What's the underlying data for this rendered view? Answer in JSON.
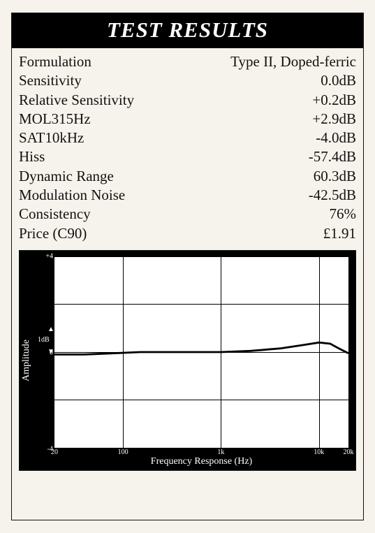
{
  "title": "TEST RESULTS",
  "rows": [
    {
      "label": "Formulation",
      "value": "Type II, Doped-ferric"
    },
    {
      "label": "Sensitivity",
      "value": "0.0dB"
    },
    {
      "label": "Relative Sensitivity",
      "value": "+0.2dB"
    },
    {
      "label": "MOL315Hz",
      "value": "+2.9dB"
    },
    {
      "label": "SAT10kHz",
      "value": "-4.0dB"
    },
    {
      "label": "Hiss",
      "value": "-57.4dB"
    },
    {
      "label": "Dynamic Range",
      "value": "60.3dB"
    },
    {
      "label": "Modulation Noise",
      "value": "-42.5dB"
    },
    {
      "label": "Consistency",
      "value": "76%"
    },
    {
      "label": "Price (C90)",
      "value": "£1.91"
    }
  ],
  "chart": {
    "type": "line",
    "xlabel": "Frequency Response (Hz)",
    "ylabel": "Amplitude",
    "x_scale": "log",
    "xlim": [
      20,
      20000
    ],
    "ylim": [
      -4,
      4
    ],
    "ytick_step": 2,
    "yticks": [
      -4,
      -2,
      0,
      2,
      4
    ],
    "ytick_labels": [
      "-4",
      "",
      "0",
      "",
      "+4"
    ],
    "xticks": [
      20,
      100,
      1000,
      10000,
      20000
    ],
    "xtick_labels": [
      "20",
      "100",
      "1k",
      "10k",
      "20k"
    ],
    "x_gridlines": [
      100,
      1000,
      10000
    ],
    "y_gridlines": [
      -4,
      -2,
      0,
      2,
      4
    ],
    "db_marker_label": "1dB",
    "db_marker_span": 1,
    "line_color": "#000000",
    "line_width": 1.2,
    "background_color": "#ffffff",
    "margin_color": "#000000",
    "grid_color": "#000000",
    "tick_font_color": "#ffffff",
    "label_font_color": "#ffffff",
    "label_fontsize": 14,
    "tick_fontsize": 10,
    "series": [
      {
        "x": 20,
        "y": -0.1
      },
      {
        "x": 40,
        "y": -0.1
      },
      {
        "x": 80,
        "y": -0.05
      },
      {
        "x": 150,
        "y": 0.0
      },
      {
        "x": 300,
        "y": 0.0
      },
      {
        "x": 600,
        "y": 0.0
      },
      {
        "x": 1000,
        "y": 0.0
      },
      {
        "x": 2000,
        "y": 0.05
      },
      {
        "x": 4000,
        "y": 0.15
      },
      {
        "x": 7000,
        "y": 0.3
      },
      {
        "x": 10000,
        "y": 0.4
      },
      {
        "x": 13000,
        "y": 0.35
      },
      {
        "x": 16000,
        "y": 0.15
      },
      {
        "x": 20000,
        "y": -0.05
      }
    ]
  },
  "colors": {
    "page_bg": "#f6f3ec",
    "text": "#111111",
    "title_bg": "#000000",
    "title_fg": "#ffffff"
  }
}
